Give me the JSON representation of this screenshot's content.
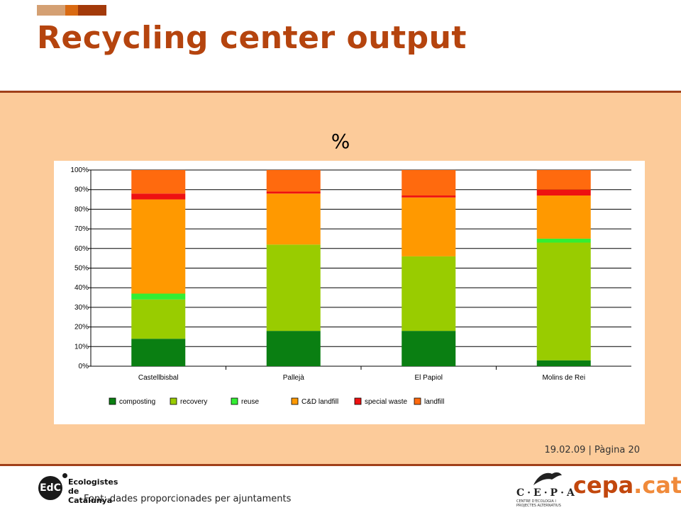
{
  "slide": {
    "title": "Recycling center output",
    "page_info": {
      "date": "19.02.09",
      "separator": "|",
      "page_label": "Pàgina 20"
    },
    "footer_note": "Font: dades proporcionades per ajuntaments",
    "colors": {
      "title": "#b5440e",
      "panel": "#fccb9a",
      "rule": "#a0401a"
    }
  },
  "logos": {
    "edc": {
      "initials": "EdC",
      "line1": "Ecologistes",
      "line2": "de Catalunya"
    },
    "cepa": {
      "name": "C·E·P·A",
      "subtitle": "CENTRE D'ECOLOGIA I PROJECTES ALTERNATIUS",
      "domain_main": "cepa",
      "domain_tld": ".cat"
    }
  },
  "chart_data": {
    "type": "bar",
    "stacked": true,
    "percent_stacked": true,
    "title": "%",
    "categories": [
      "Castellbisbal",
      "Pallejà",
      "El Papiol",
      "Molins de Rei"
    ],
    "yticks": [
      "0%",
      "10%",
      "20%",
      "30%",
      "40%",
      "50%",
      "60%",
      "70%",
      "80%",
      "90%",
      "100%"
    ],
    "ylim": [
      0,
      100
    ],
    "grid": true,
    "legend_position": "bottom",
    "series": [
      {
        "name": "composting",
        "color": "#0a7f12",
        "values": [
          14,
          18,
          18,
          3
        ]
      },
      {
        "name": "recovery",
        "color": "#99cc00",
        "values": [
          20,
          44,
          38,
          60
        ]
      },
      {
        "name": "reuse",
        "color": "#33ee33",
        "values": [
          3,
          0,
          0,
          2
        ]
      },
      {
        "name": "C&D landfill",
        "color": "#ff9900",
        "values": [
          48,
          26,
          30,
          22
        ]
      },
      {
        "name": "special waste",
        "color": "#ee1111",
        "values": [
          3,
          1,
          1,
          3
        ]
      },
      {
        "name": "landfill",
        "color": "#ff6a0e",
        "values": [
          12,
          11,
          13,
          10
        ]
      }
    ]
  }
}
